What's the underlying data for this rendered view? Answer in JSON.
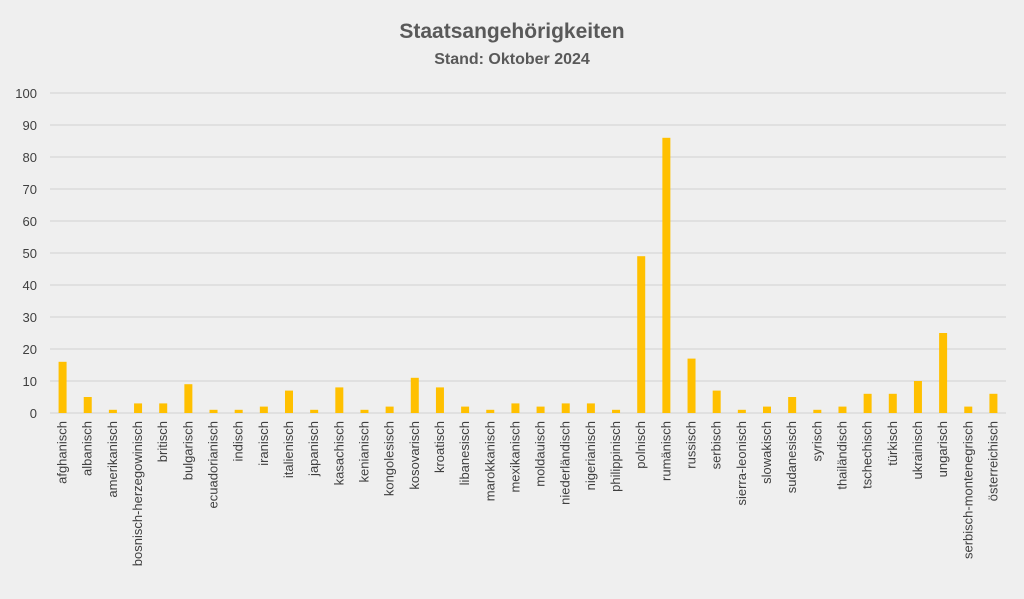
{
  "chart_data": {
    "type": "bar",
    "title": "Staatsangehörigkeiten",
    "subtitle": "Stand: Oktober 2024",
    "xlabel": "",
    "ylabel": "",
    "ylim": [
      0,
      100
    ],
    "yticks": [
      "0",
      "10",
      "20",
      "30",
      "40",
      "50",
      "60",
      "70",
      "80",
      "90",
      "100"
    ],
    "grid": true,
    "legend": "none",
    "bar_color": "#FFC000",
    "background": "#EFEFEF",
    "categories": [
      "afghanisch",
      "albanisch",
      "amerikanisch",
      "bosnisch-herzegowinisch",
      "britisch",
      "bulgarisch",
      "ecuadorianisch",
      "indisch",
      "iranisch",
      "italienisch",
      "japanisch",
      "kasachisch",
      "kenianisch",
      "kongolesisch",
      "kosovarisch",
      "kroatisch",
      "libanesisch",
      "marokkanisch",
      "mexikanisch",
      "moldauisch",
      "niederländisch",
      "nigerianisch",
      "philippinisch",
      "polnisch",
      "rumänisch",
      "russisch",
      "serbisch",
      "sierra-leonisch",
      "slowakisch",
      "sudanesisch",
      "syrisch",
      "thailändisch",
      "tschechisch",
      "türkisch",
      "ukrainisch",
      "ungarisch",
      "serbisch-montenegrisch",
      "österreichisch"
    ],
    "values": [
      16,
      5,
      1,
      3,
      3,
      9,
      1,
      1,
      2,
      7,
      1,
      8,
      1,
      2,
      11,
      8,
      2,
      1,
      3,
      2,
      3,
      3,
      1,
      49,
      86,
      17,
      7,
      1,
      2,
      5,
      1,
      2,
      6,
      6,
      10,
      25,
      2,
      6
    ]
  }
}
